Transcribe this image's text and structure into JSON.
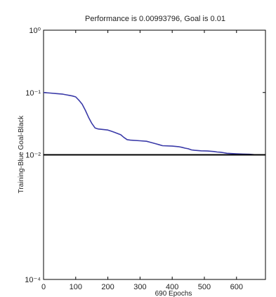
{
  "chart_data": {
    "type": "line",
    "title": "Performance is 0.00993796, Goal is 0.01",
    "xlabel": "690 Epochs",
    "ylabel": "Training-Blue  Goal-Black",
    "xlim": [
      0,
      690
    ],
    "ylim": [
      0.0001,
      1
    ],
    "yscale": "log",
    "x_ticks": [
      0,
      100,
      200,
      300,
      400,
      500,
      600
    ],
    "x_tick_labels": [
      "0",
      "100",
      "200",
      "300",
      "400",
      "500",
      "600"
    ],
    "y_ticks": [
      1,
      0.1,
      0.01,
      0.0001
    ],
    "y_tick_labels": [
      "10⁰",
      "10⁻¹",
      "10⁻²",
      "10⁻⁴"
    ],
    "grid": false,
    "series": [
      {
        "name": "Training",
        "color": "#3a3aa8",
        "x": [
          0,
          20,
          40,
          60,
          70,
          80,
          90,
          100,
          110,
          120,
          130,
          140,
          150,
          160,
          170,
          200,
          210,
          220,
          230,
          240,
          250,
          260,
          270,
          300,
          320,
          330,
          340,
          350,
          360,
          370,
          400,
          420,
          430,
          440,
          450,
          460,
          470,
          490,
          510,
          520,
          530,
          540,
          550,
          560,
          570,
          580,
          600,
          620,
          640,
          650,
          660,
          670,
          680,
          690
        ],
        "values": [
          0.1,
          0.098,
          0.096,
          0.094,
          0.092,
          0.09,
          0.088,
          0.085,
          0.075,
          0.065,
          0.052,
          0.04,
          0.032,
          0.027,
          0.026,
          0.025,
          0.024,
          0.023,
          0.022,
          0.021,
          0.019,
          0.0175,
          0.0172,
          0.0168,
          0.0165,
          0.016,
          0.0155,
          0.015,
          0.0145,
          0.014,
          0.0138,
          0.0135,
          0.0132,
          0.0128,
          0.0125,
          0.012,
          0.0118,
          0.0116,
          0.0115,
          0.0114,
          0.0113,
          0.0111,
          0.011,
          0.0108,
          0.0106,
          0.0105,
          0.0104,
          0.0103,
          0.0102,
          0.0101,
          0.01,
          0.01,
          0.00995,
          0.00993796
        ]
      },
      {
        "name": "Goal",
        "color": "#000000",
        "x": [
          0,
          690
        ],
        "values": [
          0.01,
          0.01
        ]
      }
    ]
  }
}
